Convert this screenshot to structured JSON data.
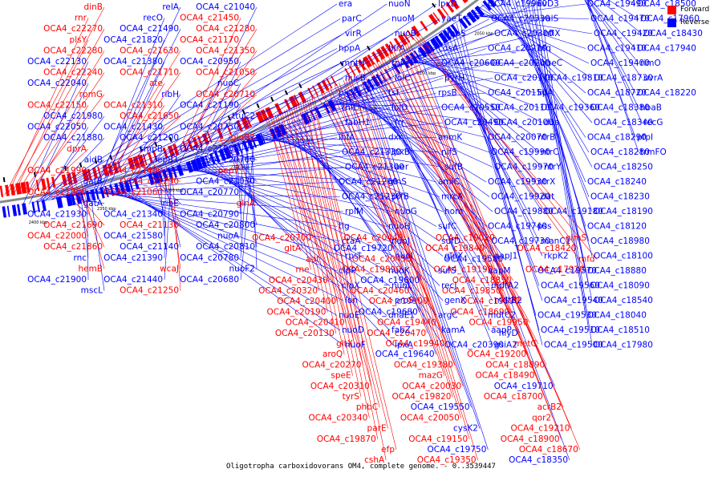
{
  "caption": "Oligotropha carboxidovorans OM4, complete genome. - 0..3539447",
  "legend": {
    "forward_label": "Forward",
    "reverse_label": "Reverse",
    "forward_color": "#ff0000",
    "reverse_color": "#0000ff"
  },
  "ticks": [
    "2400 kbp",
    "2350 kbp",
    "2300 kbp",
    "2250 kbp",
    "2200 kbp",
    "2150 kbp",
    "2100 kbp",
    "2050 kbp",
    "2000 kbp",
    "1950 kbp"
  ],
  "labels": [
    [
      "dinB",
      "r"
    ],
    [
      "rnr",
      "r"
    ],
    [
      "OCA4_c22270",
      "r"
    ],
    [
      "plsY",
      "r"
    ],
    [
      "OCA4_c22280",
      "r"
    ],
    [
      "OCA4_c22130",
      "b"
    ],
    [
      "OCA4_c22240",
      "r"
    ],
    [
      "OCA4_c22040",
      "b"
    ],
    [
      "rpmG",
      "r"
    ],
    [
      "OCA4_c22150",
      "r"
    ],
    [
      "OCA4_c21980",
      "b"
    ],
    [
      "OCA4_c22050",
      "b"
    ],
    [
      "OCA4_c21880",
      "b"
    ],
    [
      "dprA",
      "r"
    ],
    [
      "aidB",
      "b"
    ],
    [
      "OCA4_c21990",
      "r"
    ],
    [
      "gatB",
      "b"
    ],
    [
      "OCA4_c21800",
      "r"
    ],
    [
      "gatA",
      "b"
    ],
    [
      "OCA4_c21930",
      "b"
    ],
    [
      "OCA4_c21690",
      "r"
    ],
    [
      "OCA4_c22000",
      "r"
    ],
    [
      "OCA4_c21860",
      "r"
    ],
    [
      "rnc",
      "b"
    ],
    [
      "hemB",
      "r"
    ],
    [
      "OCA4_c21900",
      "b"
    ],
    [
      "mscL",
      "b"
    ],
    [
      "relA",
      "b"
    ],
    [
      "recO",
      "b"
    ],
    [
      "OCA4_c21490",
      "b"
    ],
    [
      "OCA4_c21820",
      "b"
    ],
    [
      "OCA4_c21630",
      "r"
    ],
    [
      "OCA4_c21380",
      "b"
    ],
    [
      "OCA4_c21710",
      "r"
    ],
    [
      "ate",
      "r"
    ],
    [
      "ribH",
      "b"
    ],
    [
      "OCA4_c21310",
      "r"
    ],
    [
      "OCA4_c21650",
      "r"
    ],
    [
      "OCA4_c21430",
      "b"
    ],
    [
      "OCA4_c21200",
      "b"
    ],
    [
      "smpB",
      "b"
    ],
    [
      "lepB1",
      "b"
    ],
    [
      "OCA4_c21480",
      "r"
    ],
    [
      "OCA4_c21290",
      "r"
    ],
    [
      "OCA4_c21060",
      "r"
    ],
    [
      "ribE",
      "b"
    ],
    [
      "OCA4_c21340",
      "b"
    ],
    [
      "OCA4_c21130",
      "r"
    ],
    [
      "OCA4_c21580",
      "b"
    ],
    [
      "OCA4_c21140",
      "b"
    ],
    [
      "OCA4_c21390",
      "b"
    ],
    [
      "wcaJ",
      "r"
    ],
    [
      "OCA4_c21440",
      "b"
    ],
    [
      "OCA4_c21250",
      "r"
    ],
    [
      "OCA4_c21040",
      "b"
    ],
    [
      "OCA4_c21450",
      "r"
    ],
    [
      "OCA4_c21280",
      "r"
    ],
    [
      "OCA4_c21170",
      "r"
    ],
    [
      "OCA4_c21350",
      "r"
    ],
    [
      "OCA4_c20950",
      "b"
    ],
    [
      "OCA4_c21050",
      "r"
    ],
    [
      "nuoC",
      "b"
    ],
    [
      "OCA4_c20710",
      "r"
    ],
    [
      "OCA4_c21190",
      "b"
    ],
    [
      "ttuC2",
      "b"
    ],
    [
      "OCA4_c20750",
      "b"
    ],
    [
      "glnB2",
      "r"
    ],
    [
      "OCA4_c21000",
      "b"
    ],
    [
      "OCA4_c20760",
      "b"
    ],
    [
      "pepT",
      "r"
    ],
    [
      "OCA4_c21030",
      "b"
    ],
    [
      "OCA4_c20770",
      "b"
    ],
    [
      "glnA",
      "r"
    ],
    [
      "OCA4_c20790",
      "b"
    ],
    [
      "OCA4_c20800",
      "b"
    ],
    [
      "nuoA",
      "b"
    ],
    [
      "OCA4_c20810",
      "b"
    ],
    [
      "OCA4_c20780",
      "b"
    ],
    [
      "nuoF2",
      "b"
    ],
    [
      "OCA4_c20680",
      "b"
    ],
    [
      "OCA4_c20700",
      "r"
    ],
    [
      "gltA",
      "r"
    ],
    [
      "aat",
      "r"
    ],
    [
      "rne",
      "r"
    ],
    [
      "OCA4_c20430",
      "r"
    ],
    [
      "OCA4_c20320",
      "r"
    ],
    [
      "OCA4_c20400",
      "r"
    ],
    [
      "OCA4_c20190",
      "r"
    ],
    [
      "OCA4_c20410",
      "r"
    ],
    [
      "OCA4_c20130",
      "r"
    ],
    [
      "gltX",
      "r"
    ],
    [
      "aroQ",
      "r"
    ],
    [
      "OCA4_c20270",
      "r"
    ],
    [
      "speE",
      "r"
    ],
    [
      "OCA4_c20310",
      "r"
    ],
    [
      "tyrS",
      "r"
    ],
    [
      "phbC",
      "r"
    ],
    [
      "OCA4_c20340",
      "r"
    ],
    [
      "parE",
      "r"
    ],
    [
      "OCA4_c19870",
      "r"
    ],
    [
      "efp",
      "r"
    ],
    [
      "cshA",
      "r"
    ],
    [
      "OCA4_c20440",
      "r"
    ],
    [
      "OCA4_c19720",
      "b"
    ],
    [
      "OCA4_c20450",
      "r"
    ],
    [
      "OCA4_c19890",
      "r"
    ],
    [
      "OCA4_c19600",
      "b"
    ],
    [
      "OCA4_c20460",
      "r"
    ],
    [
      "OCA4_c19900",
      "r"
    ],
    [
      "OCA4_c19680",
      "b"
    ],
    [
      "OCA4_c19440",
      "r"
    ],
    [
      "OCA4_c20470",
      "r"
    ],
    [
      "OCA4_c19940",
      "r"
    ],
    [
      "OCA4_c19640",
      "b"
    ],
    [
      "OCA4_c19380",
      "r"
    ],
    [
      "mazG",
      "r"
    ],
    [
      "OCA4_c20030",
      "r"
    ],
    [
      "OCA4_c19820",
      "r"
    ],
    [
      "OCA4_c19550",
      "b"
    ],
    [
      "OCA4_c20050",
      "r"
    ],
    [
      "cysK2",
      "b"
    ],
    [
      "OCA4_c19150",
      "r"
    ],
    [
      "OCA4_c19750",
      "b"
    ],
    [
      "OCA4_c19350",
      "r"
    ],
    [
      "OCA4_c19020",
      "r"
    ],
    [
      "OCA4_c19840",
      "r"
    ],
    [
      "OCA4_c19580",
      "b"
    ],
    [
      "OCA4_c19190",
      "r"
    ],
    [
      "OCA4_c18850",
      "r"
    ],
    [
      "OCA4_c19850",
      "r"
    ],
    [
      "OCA4_c19590",
      "r"
    ],
    [
      "OCA4_c18690",
      "r"
    ],
    [
      "OCA4_c19950",
      "r"
    ],
    [
      "hlyD",
      "b"
    ],
    [
      "metC",
      "r"
    ],
    [
      "OCA4_c19200",
      "r"
    ],
    [
      "OCA4_c18890",
      "r"
    ],
    [
      "OCA4_c18490",
      "r"
    ],
    [
      "OCA4_c19710",
      "b"
    ],
    [
      "OCA4_c18700",
      "r"
    ],
    [
      "acrB2",
      "r"
    ],
    [
      "qor2",
      "r"
    ],
    [
      "OCA4_c19210",
      "r"
    ],
    [
      "OCA4_c18900",
      "r"
    ],
    [
      "OCA4_c18670",
      "r"
    ],
    [
      "OCA4_c18350",
      "b"
    ],
    [
      "glmS",
      "r"
    ],
    [
      "OCA4_c18420",
      "r"
    ],
    [
      "mfd",
      "r"
    ],
    [
      "OCA4_c17920",
      "r"
    ],
    [
      "era",
      "b"
    ],
    [
      "parC",
      "b"
    ],
    [
      "virR",
      "b"
    ],
    [
      "hppA",
      "b"
    ],
    [
      "mntH",
      "b"
    ],
    [
      "nusB",
      "b"
    ],
    [
      "plsX",
      "b"
    ],
    [
      "thiL",
      "b"
    ],
    [
      "fabH1",
      "b"
    ],
    [
      "ihfA",
      "b"
    ],
    [
      "OCA4_c21330",
      "b"
    ],
    [
      "OCA4_c21300",
      "b"
    ],
    [
      "OCA4_c21260",
      "b"
    ],
    [
      "OCA4_c21230",
      "b"
    ],
    [
      "rplM",
      "b"
    ],
    [
      "tig",
      "b"
    ],
    [
      "ctaA",
      "b"
    ],
    [
      "rpsI",
      "b"
    ],
    [
      "clpP",
      "b"
    ],
    [
      "clpX",
      "b"
    ],
    [
      "lon",
      "b"
    ],
    [
      "nuoE",
      "b"
    ],
    [
      "nuoD",
      "b"
    ],
    [
      "nuoF",
      "b"
    ],
    [
      "nuoN",
      "b"
    ],
    [
      "nuoM",
      "b"
    ],
    [
      "nuoB",
      "b"
    ],
    [
      "birA",
      "b"
    ],
    [
      "rnj",
      "b"
    ],
    [
      "lolC",
      "b"
    ],
    [
      "tsf",
      "b"
    ],
    [
      "lolD",
      "b"
    ],
    [
      "frr",
      "b"
    ],
    [
      "dxr",
      "b"
    ],
    [
      "lpxB",
      "b"
    ],
    [
      "aer",
      "b"
    ],
    [
      "glnS",
      "b"
    ],
    [
      "prfB",
      "b"
    ],
    [
      "nuoG",
      "b"
    ],
    [
      "nuoH",
      "b"
    ],
    [
      "nuoJ",
      "b"
    ],
    [
      "nuoI",
      "b"
    ],
    [
      "nuoK",
      "b"
    ],
    [
      "nuoL",
      "b"
    ],
    [
      "proS",
      "b"
    ],
    [
      "dnaE1",
      "b"
    ],
    [
      "fabZ",
      "b"
    ],
    [
      "lpxA",
      "b"
    ],
    [
      "lpxD",
      "b"
    ],
    [
      "yaeT",
      "b"
    ],
    [
      "uppS",
      "b"
    ],
    [
      "cdsA",
      "b"
    ],
    [
      "OCA4_c20600",
      "b"
    ],
    [
      "pyrH",
      "b"
    ],
    [
      "rpsB",
      "b"
    ],
    [
      "OCA4_c20550",
      "b"
    ],
    [
      "OCA4_c20490",
      "b"
    ],
    [
      "anmK",
      "b"
    ],
    [
      "nifS",
      "b"
    ],
    [
      "sufB",
      "b"
    ],
    [
      "amiC",
      "b"
    ],
    [
      "mrcA",
      "b"
    ],
    [
      "hom",
      "b"
    ],
    [
      "sufC",
      "b"
    ],
    [
      "sufD",
      "b"
    ],
    [
      "glpX",
      "b"
    ],
    [
      "sufS",
      "b"
    ],
    [
      "recJ",
      "b"
    ],
    [
      "genX",
      "b"
    ],
    [
      "argC",
      "b"
    ],
    [
      "kamA",
      "b"
    ],
    [
      "OCA4_c20390",
      "b"
    ],
    [
      "OCA4_c19960",
      "b"
    ],
    [
      "OCA4_c20330",
      "b"
    ],
    [
      "OCA4_c20300",
      "b"
    ],
    [
      "OCA4_c20210",
      "b"
    ],
    [
      "OCA4_c20200",
      "b"
    ],
    [
      "OCA4_c20170",
      "b"
    ],
    [
      "OCA4_c20150",
      "b"
    ],
    [
      "OCA4_c20110",
      "b"
    ],
    [
      "OCA4_c20100",
      "b"
    ],
    [
      "OCA4_c20070",
      "b"
    ],
    [
      "OCA4_c19990",
      "b"
    ],
    [
      "OCA4_c19970",
      "b"
    ],
    [
      "OCA4_c19930",
      "b"
    ],
    [
      "OCA4_c19920",
      "b"
    ],
    [
      "OCA4_c19880",
      "b"
    ],
    [
      "OCA4_c19740",
      "b"
    ],
    [
      "OCA4_c19730",
      "b"
    ],
    [
      "aapJ1",
      "b"
    ],
    [
      "aapM",
      "b"
    ],
    [
      "mdtA2",
      "b"
    ],
    [
      "mdtB2",
      "b"
    ],
    [
      "mdtC2",
      "b"
    ],
    [
      "aapP",
      "b"
    ],
    [
      "gsiA2",
      "b"
    ],
    [
      "ilvD3",
      "b"
    ],
    [
      "valS",
      "b"
    ],
    [
      "hflX",
      "b"
    ],
    [
      "hfq",
      "b"
    ],
    [
      "queC",
      "b"
    ],
    [
      "OCA4_c19810",
      "b"
    ],
    [
      "lipA",
      "b"
    ],
    [
      "OCA4_c19360",
      "b"
    ],
    [
      "dus",
      "b"
    ],
    [
      "ntrB",
      "b"
    ],
    [
      "ntrC",
      "b"
    ],
    [
      "ntrY",
      "b"
    ],
    [
      "ntrX",
      "b"
    ],
    [
      "dat",
      "b"
    ],
    [
      "OCA4_c19180",
      "b"
    ],
    [
      "pss",
      "b"
    ],
    [
      "manC1",
      "b"
    ],
    [
      "rkpK2",
      "b"
    ],
    [
      "OCA4_c19570",
      "b"
    ],
    [
      "OCA4_c19560",
      "b"
    ],
    [
      "OCA4_c19540",
      "b"
    ],
    [
      "OCA4_c19530",
      "b"
    ],
    [
      "OCA4_c19510",
      "b"
    ],
    [
      "OCA4_c19500",
      "b"
    ],
    [
      "OCA4_c19490",
      "b"
    ],
    [
      "OCA4_c19470",
      "b"
    ],
    [
      "OCA4_c19420",
      "b"
    ],
    [
      "OCA4_c19410",
      "b"
    ],
    [
      "OCA4_c19400",
      "b"
    ],
    [
      "OCA4_c18730",
      "b"
    ],
    [
      "OCA4_c18720",
      "b"
    ],
    [
      "OCA4_c18380",
      "b"
    ],
    [
      "OCA4_c18340",
      "b"
    ],
    [
      "OCA4_c18290",
      "b"
    ],
    [
      "OCA4_c18280",
      "b"
    ],
    [
      "OCA4_c18250",
      "b"
    ],
    [
      "OCA4_c18240",
      "b"
    ],
    [
      "OCA4_c18230",
      "b"
    ],
    [
      "OCA4_c18190",
      "b"
    ],
    [
      "OCA4_c18120",
      "b"
    ],
    [
      "OCA4_c18980",
      "b"
    ],
    [
      "OCA4_c18100",
      "b"
    ],
    [
      "OCA4_c18880",
      "b"
    ],
    [
      "OCA4_c18090",
      "b"
    ],
    [
      "OCA4_c18540",
      "b"
    ],
    [
      "OCA4_c18040",
      "b"
    ],
    [
      "OCA4_c18510",
      "b"
    ],
    [
      "OCA4_c17980",
      "b"
    ],
    [
      "OCA4_c18500",
      "b"
    ],
    [
      "OCA4_c17960",
      "b"
    ],
    [
      "OCA4_c18430",
      "b"
    ],
    [
      "OCA4_c17940",
      "b"
    ],
    [
      "rimO",
      "b"
    ],
    [
      "uvrA",
      "b"
    ],
    [
      "OCA4_c18220",
      "b"
    ],
    [
      "hbaB",
      "b"
    ],
    [
      "recG",
      "b"
    ],
    [
      "pfpI",
      "b"
    ],
    [
      "trmFO",
      "b"
    ]
  ]
}
